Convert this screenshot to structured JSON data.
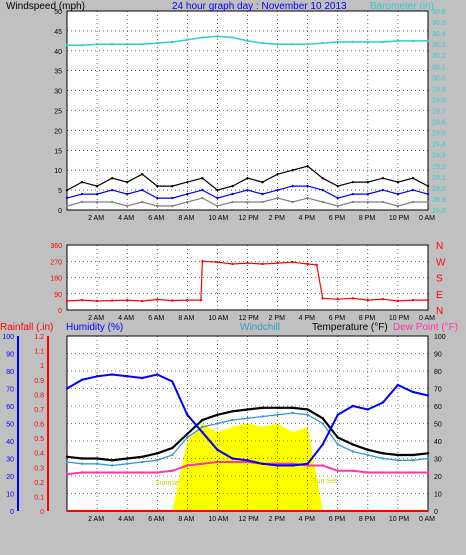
{
  "colors": {
    "background": "#c0c0c0",
    "plot_bg": "#ffffff",
    "wind_gust": "#000000",
    "wind_avg": "#0000ff",
    "wind_min": "#808080",
    "barometer": "#33cccc",
    "direction": "#ff0000",
    "temperature": "#000000",
    "humidity": "#0000ff",
    "windchill": "#3399cc",
    "dewpoint": "#ff33aa",
    "rainfall": "#ff0000",
    "solar": "#ffff00",
    "rain_axis": "#ff0000",
    "humidity_axis": "#0000ff",
    "temp_axis": "#000000"
  },
  "chart_data": [
    {
      "type": "line",
      "title": "24 hour graph day : November 10 2013",
      "ylabel_left": "Windspeed (mph)",
      "ylabel_right": "Barometer (in)",
      "x_ticks": [
        "2 AM",
        "4 AM",
        "6 AM",
        "8 AM",
        "10 AM",
        "12 PM",
        "2 PM",
        "4 PM",
        "6 PM",
        "8 PM",
        "10 PM",
        "0 AM"
      ],
      "y_left_ticks": [
        "0",
        "5",
        "10",
        "15",
        "20",
        "25",
        "30",
        "35",
        "40",
        "45",
        "50"
      ],
      "y_right_ticks": [
        "28.8",
        "28.9",
        "29.0",
        "29.1",
        "29.2",
        "29.3",
        "29.4",
        "29.5",
        "29.6",
        "29.7",
        "29.8",
        "29.9",
        "30.0",
        "30.1",
        "30.2",
        "30.3",
        "30.4",
        "30.5",
        "30.6"
      ],
      "ylim_left": [
        0,
        50
      ],
      "ylim_right": [
        28.8,
        30.6
      ],
      "grid": true,
      "x_hours": [
        0,
        1,
        2,
        3,
        4,
        5,
        6,
        7,
        8,
        9,
        10,
        11,
        12,
        13,
        14,
        15,
        16,
        17,
        18,
        19,
        20,
        21,
        22,
        23,
        24
      ],
      "series": [
        {
          "name": "Windspeed",
          "kind": "gust",
          "values": [
            5,
            7,
            6,
            8,
            7,
            9,
            6,
            6,
            7,
            8,
            5,
            6,
            8,
            7,
            9,
            10,
            11,
            8,
            6,
            7,
            7,
            8,
            7,
            8,
            6
          ]
        },
        {
          "name": "Windspeed",
          "kind": "average",
          "values": [
            3,
            4,
            4,
            5,
            4,
            5,
            3,
            3,
            4,
            5,
            3,
            4,
            5,
            4,
            5,
            6,
            6,
            5,
            3,
            4,
            4,
            5,
            4,
            5,
            4
          ]
        },
        {
          "name": "Windspeed",
          "kind": "minimum",
          "values": [
            1,
            2,
            2,
            2,
            1,
            2,
            1,
            1,
            2,
            3,
            1,
            2,
            2,
            2,
            3,
            2,
            3,
            2,
            1,
            2,
            2,
            2,
            1,
            2,
            2
          ]
        },
        {
          "name": "Barometer",
          "values": [
            30.29,
            30.29,
            30.3,
            30.3,
            30.3,
            30.3,
            30.31,
            30.32,
            30.34,
            30.36,
            30.37,
            30.36,
            30.33,
            30.31,
            30.3,
            30.3,
            30.3,
            30.31,
            30.32,
            30.32,
            30.32,
            30.32,
            30.33,
            30.33,
            30.33
          ]
        }
      ]
    },
    {
      "type": "line",
      "ylim": [
        0,
        360
      ],
      "y_ticks": [
        "0",
        "90",
        "180",
        "270",
        "360"
      ],
      "y_right_labels": [
        "N",
        "W",
        "S",
        "E",
        "N"
      ],
      "x_ticks": [
        "2 AM",
        "4 AM",
        "6 AM",
        "8 AM",
        "10 AM",
        "12 PM",
        "2 PM",
        "4 PM",
        "6 PM",
        "8 PM",
        "10 PM",
        "0 AM"
      ],
      "grid": true,
      "x_hours": [
        0,
        1,
        2,
        3,
        4,
        5,
        6,
        7,
        8,
        8.9,
        9,
        10,
        11,
        12,
        13,
        14,
        15,
        16,
        16.6,
        17,
        18,
        19,
        20,
        21,
        22,
        23,
        24
      ],
      "series": [
        {
          "name": "Wind Direction",
          "values": [
            50,
            55,
            50,
            52,
            55,
            50,
            58,
            52,
            55,
            55,
            270,
            265,
            255,
            260,
            255,
            260,
            265,
            255,
            250,
            65,
            60,
            65,
            55,
            60,
            50,
            55,
            55
          ]
        }
      ]
    },
    {
      "type": "line",
      "legend": [
        "Rainfall (.in)",
        "Humidity (%)",
        "Windchill",
        "Temperature (°F)",
        "Dew Point (°F)"
      ],
      "y_rain_ticks": [
        "0",
        "0.1",
        "0.2",
        "0.3",
        "0.4",
        "0.5",
        "0.6",
        "0.7",
        "0.8",
        "0.9",
        "1",
        "1.1",
        "1.2"
      ],
      "y_humidity_ticks": [
        "0",
        "10",
        "20",
        "30",
        "40",
        "50",
        "60",
        "70",
        "80",
        "90",
        "100"
      ],
      "y_temp_ticks": [
        "0",
        "10",
        "20",
        "30",
        "40",
        "50",
        "60",
        "70",
        "80",
        "90",
        "100"
      ],
      "x_ticks": [
        "2 AM",
        "4 AM",
        "6 AM",
        "8 AM",
        "10 AM",
        "12 PM",
        "2 PM",
        "4 PM",
        "6 PM",
        "8 PM",
        "10 PM",
        "0 AM"
      ],
      "annotations": [
        "Sunrise",
        "Sun Set"
      ],
      "ylim_humidity": [
        0,
        100
      ],
      "ylim_temp": [
        0,
        100
      ],
      "ylim_rain": [
        0,
        1.2
      ],
      "grid": true,
      "x_hours": [
        0,
        1,
        2,
        3,
        4,
        5,
        6,
        7,
        8,
        9,
        10,
        11,
        12,
        13,
        14,
        15,
        16,
        17,
        18,
        19,
        20,
        21,
        22,
        23,
        24
      ],
      "series": [
        {
          "name": "Temperature (°F)",
          "values": [
            31,
            30,
            30,
            29,
            30,
            31,
            33,
            36,
            44,
            52,
            55,
            57,
            58,
            59,
            59,
            59,
            58,
            53,
            42,
            38,
            35,
            33,
            32,
            32,
            33
          ]
        },
        {
          "name": "Humidity (%)",
          "values": [
            70,
            75,
            77,
            78,
            77,
            76,
            78,
            74,
            55,
            45,
            35,
            30,
            29,
            27,
            26,
            26,
            27,
            38,
            55,
            60,
            58,
            62,
            72,
            68,
            66
          ]
        },
        {
          "name": "Windchill",
          "values": [
            28,
            27,
            27,
            26,
            27,
            28,
            29,
            32,
            42,
            48,
            50,
            52,
            53,
            54,
            55,
            56,
            55,
            50,
            38,
            34,
            32,
            30,
            29,
            29,
            30
          ]
        },
        {
          "name": "Dew Point (°F)",
          "values": [
            21,
            22,
            22,
            22,
            22,
            22,
            22,
            23,
            26,
            27,
            28,
            28,
            28,
            27,
            27,
            27,
            26,
            26,
            23,
            23,
            22,
            22,
            22,
            22,
            22
          ]
        },
        {
          "name": "Rainfall (.in)",
          "values": [
            0,
            0,
            0,
            0,
            0,
            0,
            0,
            0,
            0,
            0,
            0,
            0,
            0,
            0,
            0,
            0,
            0,
            0,
            0,
            0,
            0,
            0,
            0,
            0,
            0
          ]
        },
        {
          "name": "Solar",
          "values": [
            0,
            0,
            0,
            0,
            0,
            0,
            0,
            0,
            40,
            50,
            45,
            48,
            50,
            48,
            50,
            45,
            48,
            0,
            0,
            0,
            0,
            0,
            0,
            0,
            0
          ]
        }
      ]
    }
  ]
}
